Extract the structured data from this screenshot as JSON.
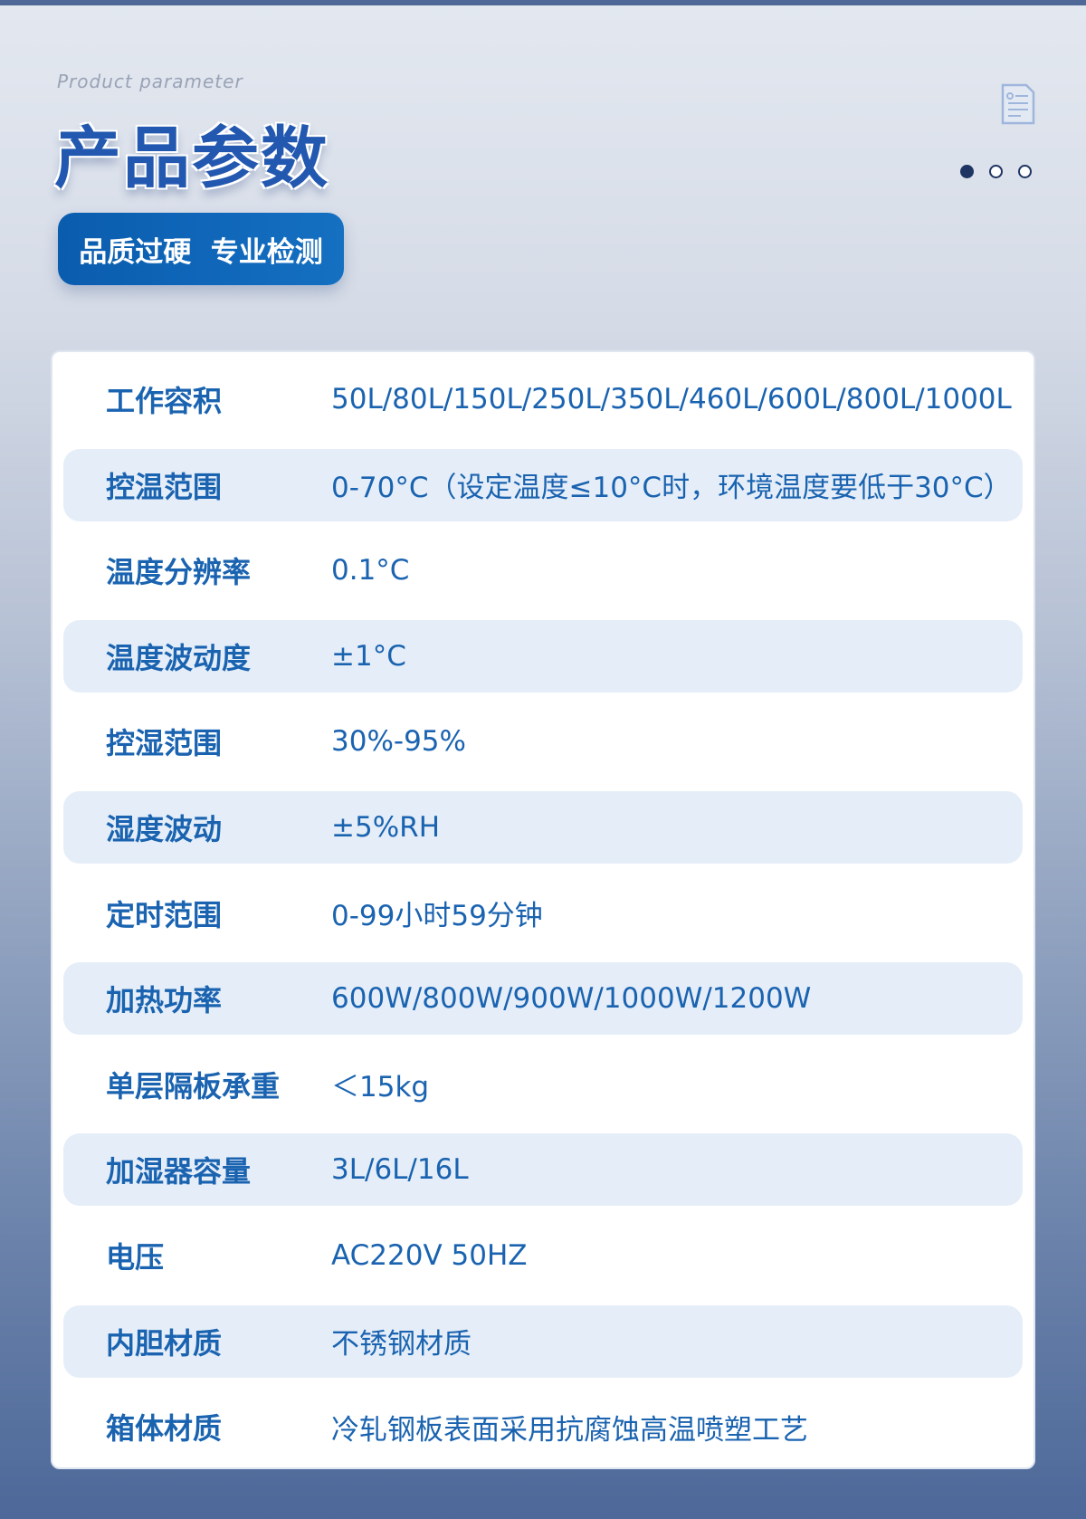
{
  "header": {
    "subtitle": "Product parameter",
    "title": "产品参数",
    "badge": "品质过硬  专业检测",
    "icon": "document-icon",
    "pager": {
      "count": 3,
      "active": 0
    }
  },
  "colors": {
    "accent": "#1a63b0",
    "stripe": "#e5eef8",
    "badge": "#0a5cae"
  },
  "params": [
    {
      "label": "工作容积",
      "value": "50L/80L/150L/250L/350L/460L/600L/800L/1000L"
    },
    {
      "label": "控温范围",
      "value": "0-70°C（设定温度≤10°C时，环境温度要低于30°C）"
    },
    {
      "label": "温度分辨率",
      "value": "0.1°C"
    },
    {
      "label": "温度波动度",
      "value": "±1°C"
    },
    {
      "label": "控湿范围",
      "value": "30%-95%"
    },
    {
      "label": "湿度波动",
      "value": "±5%RH"
    },
    {
      "label": "定时范围",
      "value": "0-99小时59分钟"
    },
    {
      "label": "加热功率",
      "value": "600W/800W/900W/1000W/1200W"
    },
    {
      "label": "单层隔板承重",
      "value": "＜15kg"
    },
    {
      "label": "加湿器容量",
      "value": "3L/6L/16L"
    },
    {
      "label": "电压",
      "value": "AC220V 50HZ"
    },
    {
      "label": "内胆材质",
      "value": "不锈钢材质"
    },
    {
      "label": "箱体材质",
      "value": "冷轧钢板表面采用抗腐蚀高温喷塑工艺"
    }
  ]
}
